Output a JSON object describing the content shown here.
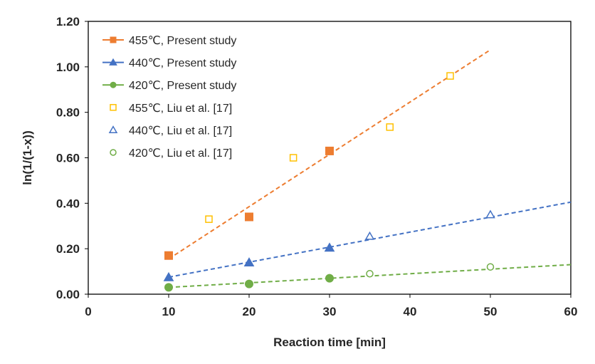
{
  "chart_data": {
    "type": "scatter",
    "title": "",
    "xlabel": "Reaction time [min]",
    "ylabel": "ln(1/(1-x))",
    "xlim": [
      0,
      60
    ],
    "ylim": [
      0,
      1.2
    ],
    "xticks": [
      0,
      10,
      20,
      30,
      40,
      50,
      60
    ],
    "xtick_labels": [
      "0",
      "10",
      "20",
      "30",
      "40",
      "50",
      "60"
    ],
    "yticks": [
      0,
      0.2,
      0.4,
      0.6,
      0.8,
      1.0,
      1.2
    ],
    "ytick_labels": [
      "0.00",
      "0.20",
      "0.40",
      "0.60",
      "0.80",
      "1.00",
      "1.20"
    ],
    "grid": false,
    "legend_position": "top-left",
    "series": [
      {
        "name": "455℃, Present study",
        "marker": "square",
        "filled": true,
        "color": "#ED7D31",
        "x": [
          10,
          20,
          30
        ],
        "y": [
          0.17,
          0.34,
          0.63
        ]
      },
      {
        "name": "440℃, Present study",
        "marker": "triangle",
        "filled": true,
        "color": "#4472C4",
        "x": [
          10,
          20,
          30
        ],
        "y": [
          0.075,
          0.14,
          0.205
        ]
      },
      {
        "name": "420℃, Present study",
        "marker": "circle",
        "filled": true,
        "color": "#70AD47",
        "x": [
          10,
          20,
          30
        ],
        "y": [
          0.03,
          0.045,
          0.07
        ]
      },
      {
        "name": "455℃, Liu et al. [17]",
        "marker": "square",
        "filled": false,
        "color": "#FFC000",
        "x": [
          15,
          25.5,
          37.5,
          45
        ],
        "y": [
          0.33,
          0.6,
          0.735,
          0.96
        ]
      },
      {
        "name": "440℃, Liu et al. [17]",
        "marker": "triangle",
        "filled": false,
        "color": "#4472C4",
        "x": [
          35,
          50
        ],
        "y": [
          0.255,
          0.35
        ]
      },
      {
        "name": "420℃, Liu et al. [17]",
        "marker": "circle",
        "filled": false,
        "color": "#70AD47",
        "x": [
          35,
          50
        ],
        "y": [
          0.09,
          0.12
        ]
      }
    ],
    "trendlines": [
      {
        "name": "455℃ fit",
        "color": "#ED7D31",
        "x": [
          10,
          50
        ],
        "y": [
          0.155,
          1.075
        ]
      },
      {
        "name": "440℃ fit",
        "color": "#4472C4",
        "x": [
          10,
          60
        ],
        "y": [
          0.075,
          0.405
        ]
      },
      {
        "name": "420℃ fit",
        "color": "#70AD47",
        "x": [
          10,
          60
        ],
        "y": [
          0.03,
          0.13
        ]
      }
    ]
  }
}
